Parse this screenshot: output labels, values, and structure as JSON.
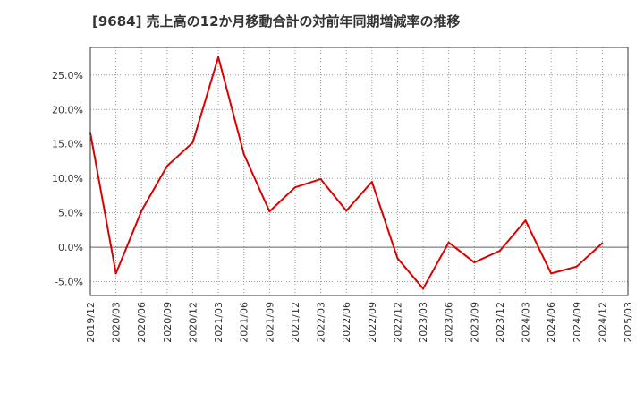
{
  "chart_data": {
    "type": "line",
    "title": "[9684]  売上高の12か月移動合計の対前年同期増減率の推移",
    "xlabel": "",
    "ylabel": "",
    "ylim": [
      -7,
      29
    ],
    "yticks": [
      -5,
      0,
      5,
      10,
      15,
      20,
      25
    ],
    "ytick_labels": [
      "-5.0%",
      "0.0%",
      "5.0%",
      "10.0%",
      "15.0%",
      "20.0%",
      "25.0%"
    ],
    "categories": [
      "2019/12",
      "2020/03",
      "2020/06",
      "2020/09",
      "2020/12",
      "2021/03",
      "2021/06",
      "2021/09",
      "2021/12",
      "2022/03",
      "2022/06",
      "2022/09",
      "2022/12",
      "2023/03",
      "2023/06",
      "2023/09",
      "2023/12",
      "2024/03",
      "2024/06",
      "2024/09",
      "2024/12",
      "2025/03"
    ],
    "grid": true,
    "series": [
      {
        "name": "増減率",
        "color": "#dd0000",
        "values": [
          16.6,
          -3.8,
          5.3,
          11.8,
          15.2,
          27.6,
          13.5,
          5.2,
          8.7,
          9.9,
          5.3,
          9.5,
          -1.6,
          -6.0,
          0.7,
          -2.2,
          -0.5,
          3.9,
          -3.8,
          -2.8,
          0.6,
          null
        ]
      }
    ]
  }
}
